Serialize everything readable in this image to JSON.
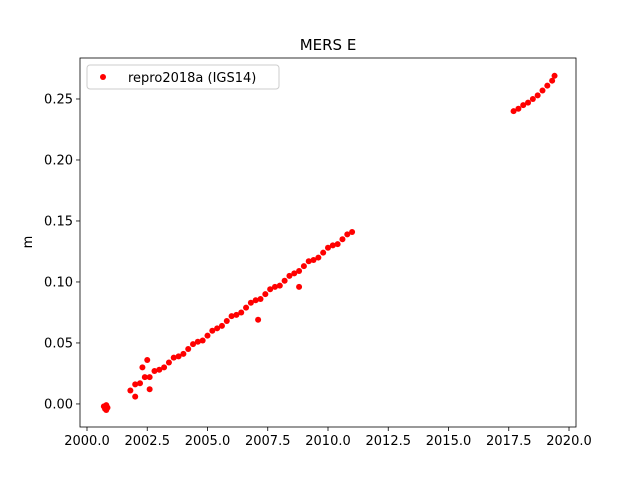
{
  "chart_data": {
    "type": "scatter",
    "title": "MERS E",
    "y_label": "m",
    "xlim": [
      1999.71,
      2020.29
    ],
    "ylim": [
      -0.0189,
      0.2836
    ],
    "xticks": [
      {
        "value": 2000,
        "label": "2000.0"
      },
      {
        "value": 2002.5,
        "label": "2002.5"
      },
      {
        "value": 2005,
        "label": "2005.0"
      },
      {
        "value": 2007.5,
        "label": "2007.5"
      },
      {
        "value": 2010,
        "label": "2010.0"
      },
      {
        "value": 2012.5,
        "label": "2012.5"
      },
      {
        "value": 2015,
        "label": "2015.0"
      },
      {
        "value": 2017.5,
        "label": "2017.5"
      },
      {
        "value": 2020,
        "label": "2020.0"
      }
    ],
    "yticks": [
      {
        "value": 0,
        "label": "0.00"
      },
      0.05,
      {
        "value": 0.1,
        "label": "0.10"
      },
      0.15,
      {
        "value": 0.2,
        "label": "0.20"
      },
      0.25
    ],
    "legend": "upper left",
    "series": [
      {
        "name": "repro2018a (IGS14)",
        "color": "#ff0000",
        "x": [
          2000.7,
          2000.75,
          2000.8,
          2000.8,
          2000.85,
          2001.8,
          2002.0,
          2002.2,
          2002.4,
          2002.6,
          2002.8,
          2003.0,
          2003.2,
          2003.4,
          2003.6,
          2003.8,
          2004.0,
          2004.2,
          2004.4,
          2004.6,
          2004.8,
          2005.0,
          2005.2,
          2005.4,
          2005.6,
          2005.8,
          2006.0,
          2006.2,
          2006.4,
          2006.6,
          2006.8,
          2007.0,
          2007.2,
          2007.4,
          2007.6,
          2007.8,
          2008.0,
          2008.2,
          2008.4,
          2008.6,
          2008.8,
          2009.0,
          2009.2,
          2009.4,
          2009.6,
          2009.8,
          2010.0,
          2010.2,
          2010.4,
          2010.6,
          2010.8,
          2011.0,
          2002.6,
          2002.5,
          2002.3,
          2002.0,
          2007.1,
          2008.8,
          2017.7,
          2017.9,
          2018.1,
          2018.3,
          2018.5,
          2018.7,
          2018.9,
          2019.1,
          2019.3,
          2019.4
        ],
        "values": [
          -0.002,
          -0.004,
          -0.005,
          -0.001,
          -0.003,
          0.011,
          0.016,
          0.017,
          0.022,
          0.022,
          0.027,
          0.028,
          0.03,
          0.034,
          0.038,
          0.039,
          0.041,
          0.045,
          0.049,
          0.051,
          0.052,
          0.056,
          0.06,
          0.062,
          0.064,
          0.068,
          0.072,
          0.073,
          0.075,
          0.079,
          0.083,
          0.085,
          0.086,
          0.09,
          0.094,
          0.096,
          0.097,
          0.101,
          0.105,
          0.107,
          0.109,
          0.113,
          0.117,
          0.118,
          0.12,
          0.124,
          0.128,
          0.13,
          0.131,
          0.135,
          0.139,
          0.141,
          0.012,
          0.036,
          0.03,
          0.006,
          0.069,
          0.096,
          0.24,
          0.242,
          0.245,
          0.247,
          0.25,
          0.253,
          0.257,
          0.261,
          0.265,
          0.269
        ]
      }
    ]
  }
}
